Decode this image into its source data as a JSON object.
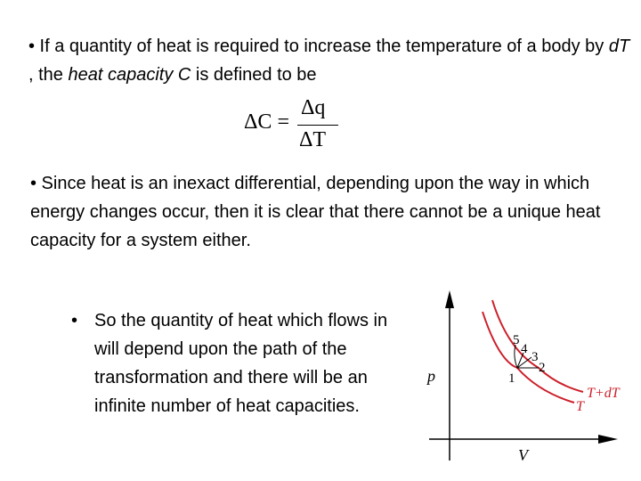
{
  "bullets": {
    "p1_prefix": "• If a quantity of heat is required to increase the temperature of a body by ",
    "p1_dT": "dT",
    "p1_mid": " , the ",
    "p1_heat_capacity": "heat capacity C",
    "p1_suffix": " is defined to be",
    "p2": "• Since heat is an inexact differential, depending upon the way in which energy changes occur, then it is clear that there cannot be a unique heat capacity for a system either.",
    "p3_bullet": "•",
    "p3": "So the quantity of heat which flows in will depend upon the path of the transformation and there will be an infinite number of heat capacities."
  },
  "equation": {
    "lhs": "ΔC =",
    "numerator": "Δq",
    "denominator": "ΔT"
  },
  "diagram": {
    "y_label": "p",
    "x_label": "V",
    "curve_lower_label": "T",
    "curve_upper_label": "T+dT",
    "point_labels": [
      "1",
      "2",
      "3",
      "4",
      "5"
    ],
    "curve_color": "#cc1f2a"
  }
}
